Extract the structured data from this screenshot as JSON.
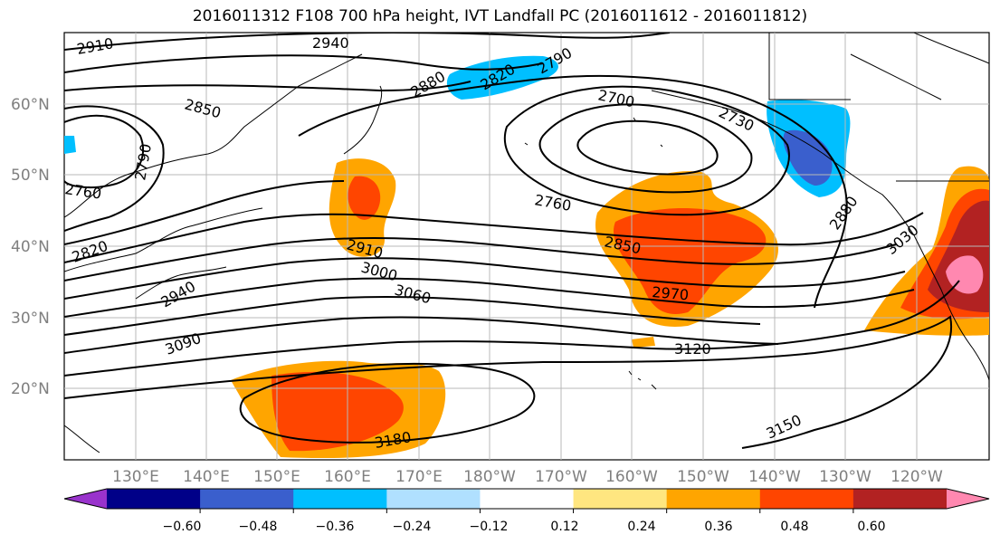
{
  "title": "2016011312 F108 700 hPa height, IVT Landfall PC (2016011612 - 2016011812)",
  "lat_labels": [
    "60°N",
    "50°N",
    "40°N",
    "30°N",
    "20°N"
  ],
  "lon_labels": [
    "130°E",
    "140°E",
    "150°E",
    "160°E",
    "170°E",
    "180°W",
    "170°W",
    "160°W",
    "150°W",
    "140°W",
    "130°W",
    "120°W"
  ],
  "contour_labels": [
    "2910",
    "2940",
    "2880",
    "2820",
    "2790",
    "2700",
    "2730",
    "2850",
    "2760",
    "2790",
    "2760",
    "2820",
    "2940",
    "2910",
    "3000",
    "3060",
    "3090",
    "2850",
    "2970",
    "3120",
    "2880",
    "3030",
    "3180",
    "3150"
  ],
  "colorbar": {
    "colors": [
      "#9933cc",
      "#000088",
      "#3a5fcd",
      "#00bfff",
      "#b0e0ff",
      "#ffffff",
      "#ffe680",
      "#ffa500",
      "#ff4500",
      "#b22222",
      "#ff88b0"
    ],
    "ticks": [
      "−0.60",
      "−0.48",
      "−0.36",
      "−0.24",
      "−0.12",
      "0.12",
      "0.24",
      "0.36",
      "0.48",
      "0.60"
    ]
  }
}
